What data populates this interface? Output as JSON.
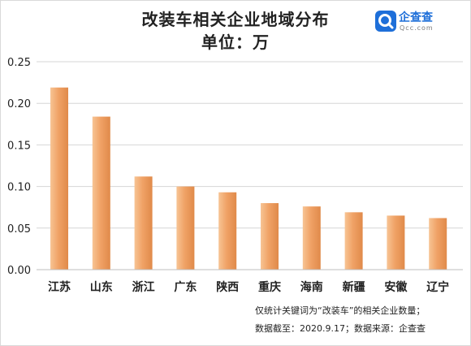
{
  "title": "改装车相关企业地域分布",
  "subtitle": "单位：万",
  "logo": {
    "name": "企查查",
    "domain": "Qcc.com",
    "icon": "qcc-logo-icon",
    "color": "#1e6fd9"
  },
  "notes": {
    "line1": "仅统计关键词为“改装车”的相关企业数量；",
    "line2": "数据截至：2020.9.17；数据来源：企查查"
  },
  "chart_data": {
    "type": "bar",
    "categories": [
      "江苏",
      "山东",
      "浙江",
      "广东",
      "陕西",
      "重庆",
      "海南",
      "新疆",
      "安徽",
      "辽宁"
    ],
    "values": [
      0.219,
      0.184,
      0.112,
      0.1,
      0.093,
      0.08,
      0.076,
      0.069,
      0.065,
      0.062
    ],
    "yticks": [
      "0.00",
      "0.05",
      "0.10",
      "0.15",
      "0.20",
      "0.25"
    ],
    "ylim": [
      0,
      0.25
    ],
    "grid": true,
    "bar_color": "#f0a266",
    "xlabel": "",
    "ylabel": ""
  }
}
